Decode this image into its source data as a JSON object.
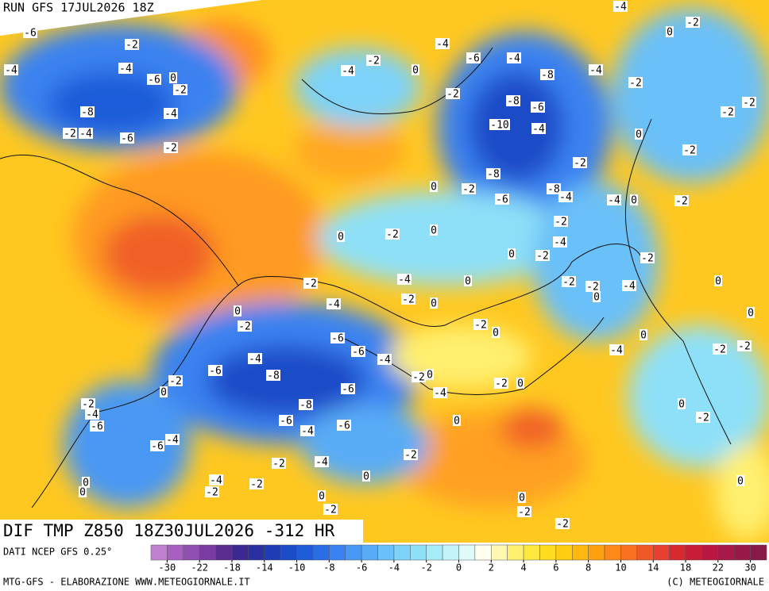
{
  "header": {
    "run": "RUN GFS 17JUL2026 18Z",
    "title": "DIF TMP Z850 18Z30JUL2026 -312 HR"
  },
  "footer": {
    "source": "DATI NCEP GFS 0.25°",
    "credit": "MTG-GFS - ELABORAZIONE WWW.METEOGIORNALE.IT",
    "copyright": "(C) METEOGIORNALE"
  },
  "colorbar": {
    "colors": [
      "#c080d0",
      "#a860c0",
      "#9050b0",
      "#7a3ca0",
      "#5a2c90",
      "#3c2890",
      "#2a30a0",
      "#1e3cb4",
      "#1a4cc8",
      "#1e5cd8",
      "#2a6ee6",
      "#3a82f0",
      "#4898f4",
      "#58acf6",
      "#6ac0f8",
      "#7cd2f8",
      "#8ee0f8",
      "#a6ecf8",
      "#c4f4f8",
      "#e0fafa",
      "#fffff0",
      "#fff8b0",
      "#fff070",
      "#ffe840",
      "#ffdc20",
      "#ffcc10",
      "#ffb810",
      "#ffa010",
      "#ff8818",
      "#f87020",
      "#f05828",
      "#e84030",
      "#d82830",
      "#c81c38",
      "#b81840",
      "#a81848",
      "#981848",
      "#881848"
    ],
    "ticks": [
      -30,
      -22,
      -18,
      -14,
      -10,
      -8,
      -6,
      -4,
      -2,
      0,
      2,
      4,
      6,
      8,
      10,
      14,
      18,
      22,
      30
    ]
  },
  "map": {
    "contour_labels": [
      -6,
      -4,
      -2,
      -4,
      -6,
      0,
      -2,
      -8,
      -4,
      -2,
      -4,
      -6,
      -2,
      -2,
      -4,
      0,
      -4,
      -6,
      -4,
      -8,
      -4,
      -2,
      -2,
      -8,
      -6,
      -10,
      -4,
      0,
      -2,
      -2,
      -2,
      0,
      -2,
      -4,
      -8,
      0,
      -2,
      -6,
      -8,
      -4,
      -2,
      -4,
      0,
      -2,
      -2,
      -4,
      -2,
      0,
      -2,
      0,
      -2,
      0,
      -2,
      -4,
      0,
      -4,
      -2,
      0,
      -2,
      0,
      -6,
      -6,
      -4,
      -6,
      -8,
      -4,
      -2,
      0,
      -6,
      -8,
      0,
      -2,
      -2,
      -4,
      -6,
      -6,
      -4,
      -6,
      -4,
      -6,
      -2,
      -4,
      -2,
      0,
      -4,
      -2,
      -2,
      0,
      0,
      -2,
      0,
      -2,
      -2,
      0,
      -4,
      -2,
      0,
      -2,
      0,
      -4,
      0,
      0,
      -2,
      -2,
      -4,
      0,
      -2,
      -2,
      0,
      0,
      -2,
      0,
      0
    ]
  }
}
